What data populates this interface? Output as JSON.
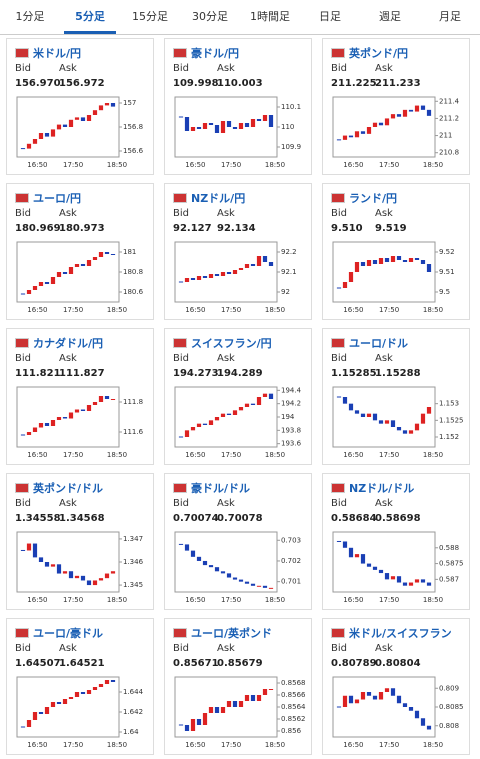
{
  "tabs": [
    "1分足",
    "5分足",
    "15分足",
    "30分足",
    "1時間足",
    "日足",
    "週足",
    "月足"
  ],
  "active_tab": 1,
  "cards": [
    {
      "name": "米ドル/円",
      "bid_label": "Bid",
      "ask_label": "Ask",
      "bid": "156.970",
      "ask": "156.972",
      "chart": {
        "type": "candlestick",
        "ylim": [
          156.55,
          157.05
        ],
        "yticks": [
          157,
          156.8,
          156.6
        ],
        "xticks": [
          "16:50",
          "17:50",
          "18:50"
        ],
        "closes": [
          156.62,
          156.66,
          156.7,
          156.75,
          156.72,
          156.78,
          156.82,
          156.8,
          156.86,
          156.88,
          156.85,
          156.9,
          156.94,
          156.98,
          157.0,
          156.97
        ]
      }
    },
    {
      "name": "豪ドル/円",
      "bid_label": "Bid",
      "ask_label": "Ask",
      "bid": "109.998",
      "ask": "110.003",
      "chart": {
        "type": "candlestick",
        "ylim": [
          109.85,
          110.15
        ],
        "yticks": [
          110.1,
          110,
          109.9
        ],
        "xticks": [
          "16:50",
          "17:50",
          "18:50"
        ],
        "closes": [
          110.05,
          109.98,
          110.0,
          109.99,
          110.02,
          110.01,
          109.97,
          110.03,
          110.0,
          109.99,
          110.02,
          110.0,
          110.04,
          110.03,
          110.06,
          110.0
        ]
      }
    },
    {
      "name": "英ポンド/円",
      "bid_label": "Bid",
      "ask_label": "Ask",
      "bid": "211.225",
      "ask": "211.233",
      "chart": {
        "type": "candlestick",
        "ylim": [
          210.75,
          211.45
        ],
        "yticks": [
          211.4,
          211.2,
          211,
          210.8
        ],
        "xticks": [
          "16:50",
          "17:50",
          "18:50"
        ],
        "closes": [
          210.95,
          211.0,
          210.98,
          211.05,
          211.02,
          211.1,
          211.15,
          211.12,
          211.2,
          211.25,
          211.22,
          211.3,
          211.28,
          211.35,
          211.3,
          211.23
        ]
      }
    },
    {
      "name": "ユーロ/円",
      "bid_label": "Bid",
      "ask_label": "Ask",
      "bid": "180.969",
      "ask": "180.973",
      "chart": {
        "type": "candlestick",
        "ylim": [
          180.5,
          181.1
        ],
        "yticks": [
          181,
          180.8,
          180.6
        ],
        "xticks": [
          "16:50",
          "17:50",
          "18:50"
        ],
        "closes": [
          180.58,
          180.62,
          180.66,
          180.7,
          180.68,
          180.75,
          180.8,
          180.78,
          180.85,
          180.88,
          180.86,
          180.92,
          180.95,
          181.0,
          180.98,
          180.97
        ]
      }
    },
    {
      "name": "NZドル/円",
      "bid_label": "Bid",
      "ask_label": "Ask",
      "bid": "92.127",
      "ask": "92.134",
      "chart": {
        "type": "candlestick",
        "ylim": [
          91.95,
          92.25
        ],
        "yticks": [
          92.2,
          92.1,
          92
        ],
        "xticks": [
          "16:50",
          "17:50",
          "18:50"
        ],
        "closes": [
          92.05,
          92.07,
          92.06,
          92.08,
          92.07,
          92.09,
          92.08,
          92.1,
          92.09,
          92.11,
          92.12,
          92.14,
          92.13,
          92.18,
          92.15,
          92.13
        ]
      }
    },
    {
      "name": "ランド/円",
      "bid_label": "Bid",
      "ask_label": "Ask",
      "bid": "9.510",
      "ask": "9.519",
      "chart": {
        "type": "candlestick",
        "ylim": [
          9.495,
          9.525
        ],
        "yticks": [
          9.52,
          9.51,
          9.5
        ],
        "xticks": [
          "16:50",
          "17:50",
          "18:50"
        ],
        "closes": [
          9.502,
          9.505,
          9.51,
          9.515,
          9.513,
          9.516,
          9.514,
          9.517,
          9.515,
          9.518,
          9.516,
          9.515,
          9.517,
          9.516,
          9.514,
          9.51
        ]
      }
    },
    {
      "name": "カナダドル/円",
      "bid_label": "Bid",
      "ask_label": "Ask",
      "bid": "111.821",
      "ask": "111.827",
      "chart": {
        "type": "candlestick",
        "ylim": [
          111.5,
          111.9
        ],
        "yticks": [
          111.8,
          111.6
        ],
        "xticks": [
          "16:50",
          "17:50",
          "18:50"
        ],
        "closes": [
          111.58,
          111.6,
          111.63,
          111.66,
          111.64,
          111.68,
          111.7,
          111.69,
          111.73,
          111.75,
          111.74,
          111.78,
          111.8,
          111.84,
          111.82,
          111.82
        ]
      }
    },
    {
      "name": "スイスフラン/円",
      "bid_label": "Bid",
      "ask_label": "Ask",
      "bid": "194.273",
      "ask": "194.289",
      "chart": {
        "type": "candlestick",
        "ylim": [
          193.55,
          194.45
        ],
        "yticks": [
          194.4,
          194.2,
          194,
          193.8,
          193.6
        ],
        "xticks": [
          "16:50",
          "17:50",
          "18:50"
        ],
        "closes": [
          193.7,
          193.8,
          193.85,
          193.9,
          193.88,
          193.95,
          194.0,
          194.05,
          194.03,
          194.1,
          194.15,
          194.2,
          194.18,
          194.3,
          194.35,
          194.27
        ]
      }
    },
    {
      "name": "ユーロ/ドル",
      "bid_label": "Bid",
      "ask_label": "Ask",
      "bid": "1.15285",
      "ask": "1.15288",
      "chart": {
        "type": "candlestick",
        "ylim": [
          1.1517,
          1.1535
        ],
        "yticks": [
          1.153,
          1.1525,
          1.152
        ],
        "xticks": [
          "16:50",
          "17:50",
          "18:50"
        ],
        "closes": [
          1.1532,
          1.153,
          1.1528,
          1.1527,
          1.1526,
          1.1527,
          1.1525,
          1.1524,
          1.1525,
          1.1523,
          1.1522,
          1.1521,
          1.1522,
          1.1524,
          1.1527,
          1.1529
        ]
      }
    },
    {
      "name": "英ポンド/ドル",
      "bid_label": "Bid",
      "ask_label": "Ask",
      "bid": "1.34558",
      "ask": "1.34568",
      "chart": {
        "type": "candlestick",
        "ylim": [
          1.3447,
          1.3473
        ],
        "yticks": [
          1.347,
          1.346,
          1.345
        ],
        "xticks": [
          "16:50",
          "17:50",
          "18:50"
        ],
        "closes": [
          1.3465,
          1.3468,
          1.3462,
          1.346,
          1.3458,
          1.3459,
          1.3455,
          1.3456,
          1.3453,
          1.3454,
          1.3452,
          1.345,
          1.3452,
          1.3453,
          1.3455,
          1.3456
        ]
      }
    },
    {
      "name": "豪ドル/ドル",
      "bid_label": "Bid",
      "ask_label": "Ask",
      "bid": "0.70074",
      "ask": "0.70078",
      "chart": {
        "type": "candlestick",
        "ylim": [
          0.7005,
          0.7034
        ],
        "yticks": [
          0.703,
          0.702,
          0.701
        ],
        "xticks": [
          "16:50",
          "17:50",
          "18:50"
        ],
        "closes": [
          0.7028,
          0.7025,
          0.7022,
          0.702,
          0.7018,
          0.7017,
          0.7015,
          0.7014,
          0.7012,
          0.7011,
          0.701,
          0.7009,
          0.7008,
          0.7008,
          0.7007,
          0.7007
        ]
      }
    },
    {
      "name": "NZドル/ドル",
      "bid_label": "Bid",
      "ask_label": "Ask",
      "bid": "0.58684",
      "ask": "0.58698",
      "chart": {
        "type": "candlestick",
        "ylim": [
          0.5866,
          0.5885
        ],
        "yticks": [
          0.588,
          0.5875,
          0.587
        ],
        "xticks": [
          "16:50",
          "17:50",
          "18:50"
        ],
        "closes": [
          0.5882,
          0.588,
          0.5877,
          0.5878,
          0.5875,
          0.5874,
          0.5873,
          0.5872,
          0.587,
          0.5871,
          0.5869,
          0.5868,
          0.5869,
          0.587,
          0.5869,
          0.5868
        ]
      }
    },
    {
      "name": "ユーロ/豪ドル",
      "bid_label": "Bid",
      "ask_label": "Ask",
      "bid": "1.64507",
      "ask": "1.64521",
      "chart": {
        "type": "candlestick",
        "ylim": [
          1.6395,
          1.6455
        ],
        "yticks": [
          1.644,
          1.642,
          1.64
        ],
        "xticks": [
          "16:50",
          "17:50",
          "18:50"
        ],
        "closes": [
          1.6405,
          1.6412,
          1.642,
          1.6418,
          1.6425,
          1.643,
          1.6428,
          1.6433,
          1.6435,
          1.644,
          1.6438,
          1.6442,
          1.6445,
          1.6448,
          1.6452,
          1.645
        ]
      }
    },
    {
      "name": "ユーロ/英ポンド",
      "bid_label": "Bid",
      "ask_label": "Ask",
      "bid": "0.85671",
      "ask": "0.85679",
      "chart": {
        "type": "candlestick",
        "ylim": [
          0.8559,
          0.8569
        ],
        "yticks": [
          0.8568,
          0.8566,
          0.8564,
          0.8562,
          0.856
        ],
        "xticks": [
          "16:50",
          "17:50",
          "18:50"
        ],
        "closes": [
          0.8561,
          0.856,
          0.8562,
          0.8561,
          0.8563,
          0.8564,
          0.8563,
          0.8564,
          0.8565,
          0.8564,
          0.8565,
          0.8566,
          0.8565,
          0.8566,
          0.8567,
          0.8567
        ]
      }
    },
    {
      "name": "米ドル/スイスフラン",
      "bid_label": "Bid",
      "ask_label": "Ask",
      "bid": "0.80789",
      "ask": "0.80804",
      "chart": {
        "type": "candlestick",
        "ylim": [
          0.8077,
          0.8093
        ],
        "yticks": [
          0.809,
          0.8085,
          0.808
        ],
        "xticks": [
          "16:50",
          "17:50",
          "18:50"
        ],
        "closes": [
          0.8085,
          0.8088,
          0.8086,
          0.8087,
          0.8089,
          0.8088,
          0.8087,
          0.8089,
          0.809,
          0.8088,
          0.8086,
          0.8085,
          0.8084,
          0.8082,
          0.808,
          0.8079
        ]
      }
    }
  ]
}
